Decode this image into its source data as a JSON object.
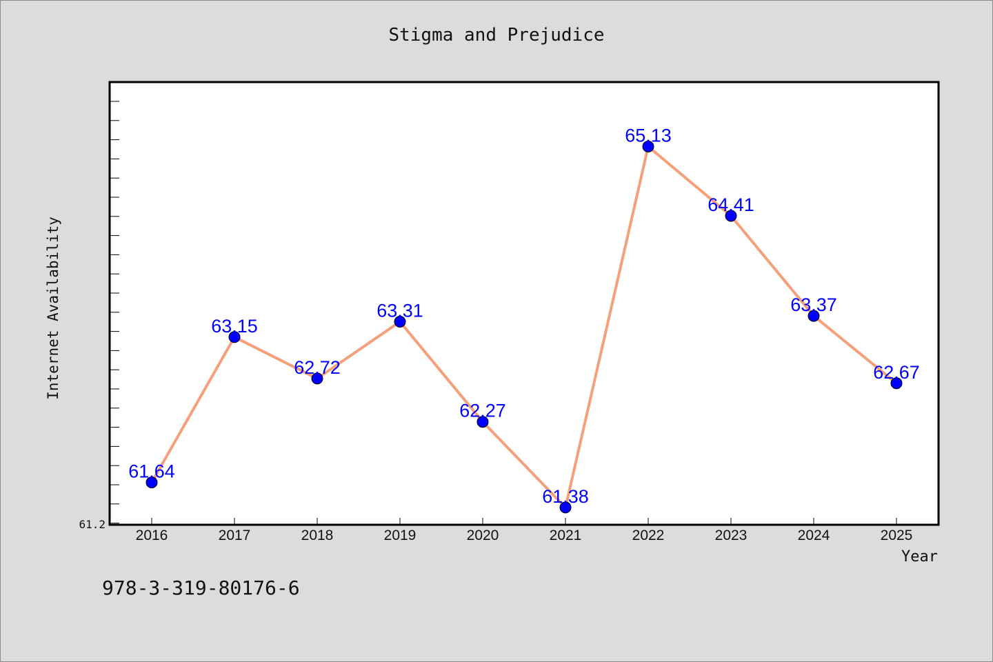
{
  "chart_data": {
    "type": "line",
    "title": "Stigma and Prejudice",
    "xlabel": "Year",
    "ylabel": "Internet Availability",
    "categories": [
      "2016",
      "2017",
      "2018",
      "2019",
      "2020",
      "2021",
      "2022",
      "2023",
      "2024",
      "2025"
    ],
    "series": [
      {
        "values": [
          61.64,
          63.15,
          62.72,
          63.31,
          62.27,
          61.38,
          65.13,
          64.41,
          63.37,
          62.67
        ],
        "labels": [
          "61.64",
          "63.15",
          "62.72",
          "63.31",
          "62.27",
          "61.38",
          "65.13",
          "64.41",
          "63.37",
          "62.67"
        ]
      }
    ],
    "ylim": [
      61.2,
      65.8
    ],
    "y_tick_label": "61.2",
    "grid": false,
    "line_color": "#f4a07a",
    "marker_color": "#0000ff",
    "label_color": "#0000ff",
    "background": "#dcdcdc",
    "plot_background": "#ffffff"
  },
  "footer": {
    "text": "978-3-319-80176-6"
  }
}
